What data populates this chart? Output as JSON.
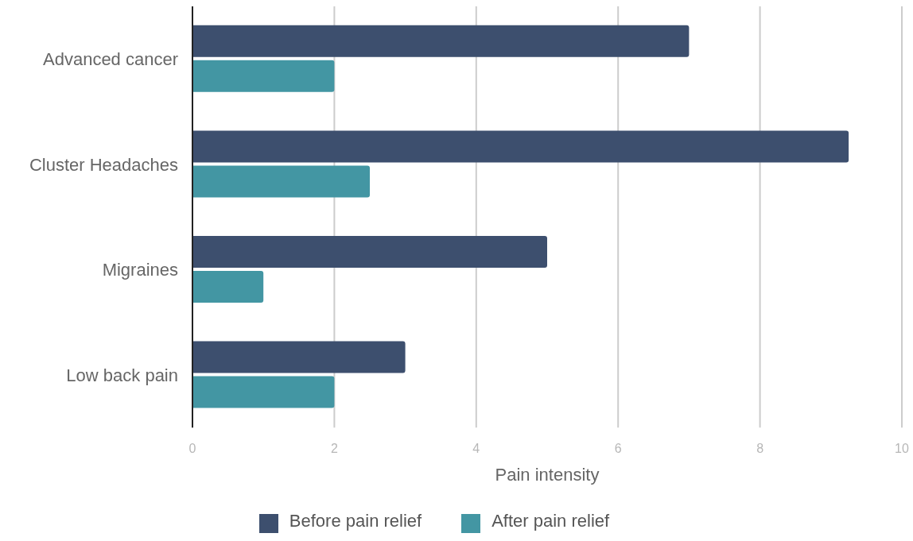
{
  "chart_data": {
    "type": "bar",
    "orientation": "horizontal",
    "xlabel": "Pain intensity",
    "categories": [
      "Advanced cancer",
      "Cluster Headaches",
      "Migraines",
      "Low back pain"
    ],
    "series": [
      {
        "name": "Before pain relief",
        "color": "#3d4f6e",
        "values": [
          7,
          9.25,
          5,
          3
        ]
      },
      {
        "name": "After pain relief",
        "color": "#4396a3",
        "values": [
          2,
          2.5,
          1,
          2
        ]
      }
    ],
    "xlim": [
      0,
      10
    ],
    "xticks": [
      0,
      2,
      4,
      6,
      8,
      10
    ],
    "grid": "x",
    "legend": "bottom"
  }
}
